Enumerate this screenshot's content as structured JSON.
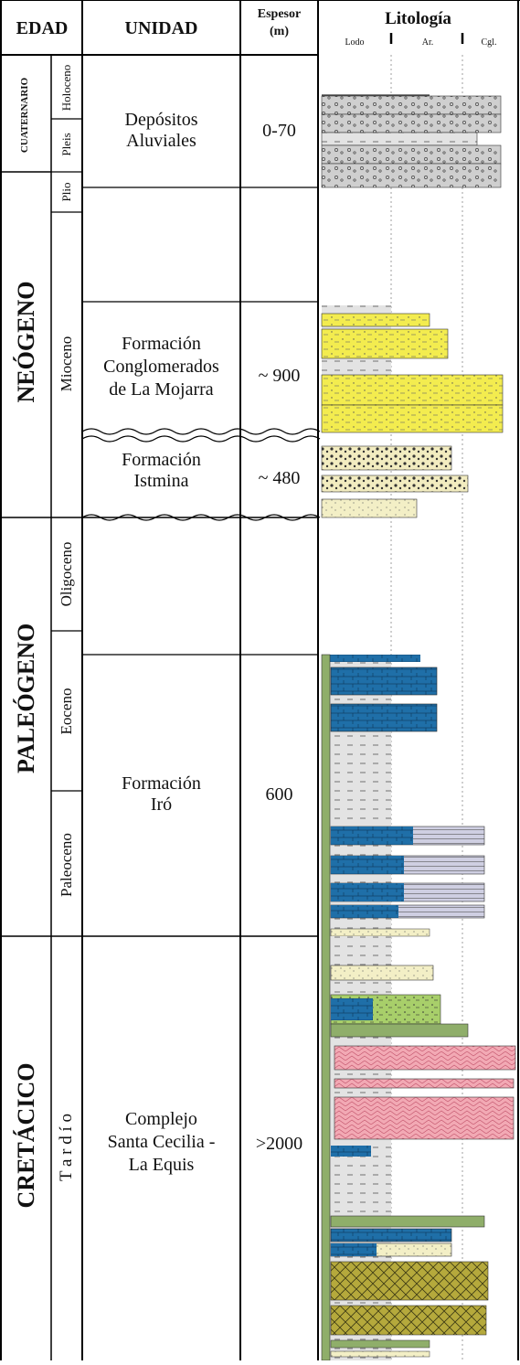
{
  "headers": {
    "age": "EDAD",
    "unit": "UNIDAD",
    "thickness_line1": "Espesor",
    "thickness_line2": "(m)",
    "lithology": "Litología",
    "lith_scale": [
      "Lodo",
      "Ar.",
      "Cgl."
    ]
  },
  "eras": [
    "CUATERNARIO",
    "NEÓGENO",
    "PALEÓGENO",
    "CRETÁCICO"
  ],
  "epochs": [
    "Holoceno",
    "Pleis",
    "Plio",
    "Mioceno",
    "Oligoceno",
    "Eoceno",
    "Paleoceno",
    "T a r d í o"
  ],
  "units": [
    {
      "name_l1": "Depósitos",
      "name_l2": "Aluviales",
      "name_l3": "",
      "thickness": "0-70"
    },
    {
      "name_l1": "Formación",
      "name_l2": "Conglomerados",
      "name_l3": "de La Mojarra",
      "thickness": "~ 900"
    },
    {
      "name_l1": "Formación",
      "name_l2": "Istmina",
      "name_l3": "",
      "thickness": "~ 480"
    },
    {
      "name_l1": "Formación",
      "name_l2": "Iró",
      "name_l3": "",
      "thickness": "600"
    },
    {
      "name_l1": "Complejo",
      "name_l2": "Santa Cecilia -",
      "name_l3": "La Equis",
      "thickness": ">2000"
    }
  ],
  "colors": {
    "gravel": "#c9c9c9",
    "yellow_sand": "#f3ec4f",
    "pale_sand": "#f2ecc0",
    "blue_chert": "#1f6fa8",
    "lavender": "#c8c8dc",
    "pale_green": "#a8cf6a",
    "pink_basalt": "#f2a9b4",
    "olive": "#b4a83a",
    "green_dyke": "#8fae6a",
    "mud": "#e2e2e2"
  }
}
